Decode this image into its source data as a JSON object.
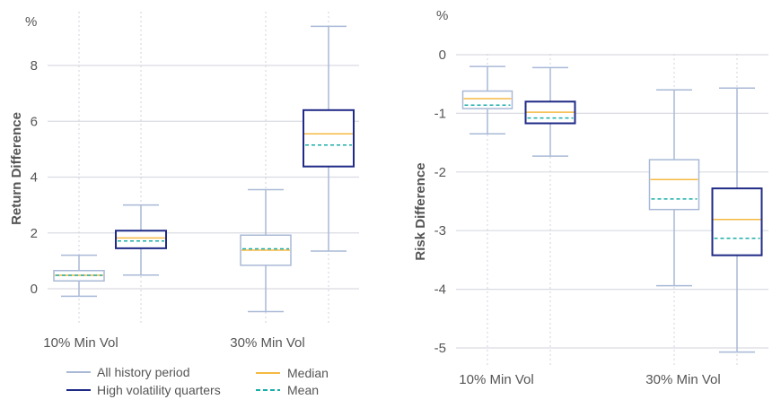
{
  "colors": {
    "all_history": "#a9b9d6",
    "high_vol": "#1f2a86",
    "median": "#f5b942",
    "mean": "#1aaea8",
    "grid": "#d9dbe2"
  },
  "legend": {
    "all_history": "All history period",
    "high_vol": "High volatility quarters",
    "median": "Median",
    "mean": "Mean"
  },
  "chart_data": [
    {
      "type": "box",
      "unit": "%",
      "ylabel": "Return Difference",
      "ylim": [
        -1.2,
        9.8
      ],
      "yticks": [
        "0",
        "2",
        "4",
        "6",
        "8"
      ],
      "categories": [
        "10% Min Vol",
        "30% Min Vol"
      ],
      "series": [
        {
          "name": "All history period",
          "boxes": [
            {
              "whisker_high": 1.2,
              "q3": 0.65,
              "median": 0.48,
              "mean": 0.48,
              "q1": 0.28,
              "whisker_low": -0.27
            },
            {
              "whisker_high": 3.55,
              "q3": 1.92,
              "median": 1.38,
              "mean": 1.43,
              "q1": 0.84,
              "whisker_low": -0.82
            }
          ]
        },
        {
          "name": "High volatility quarters",
          "boxes": [
            {
              "whisker_high": 3.0,
              "q3": 2.08,
              "median": 1.82,
              "mean": 1.71,
              "q1": 1.45,
              "whisker_low": 0.49
            },
            {
              "whisker_high": 9.4,
              "q3": 6.4,
              "median": 5.55,
              "mean": 5.15,
              "q1": 4.38,
              "whisker_low": 1.35
            }
          ]
        }
      ]
    },
    {
      "type": "box",
      "unit": "%",
      "ylabel": "Risk Difference",
      "ylim": [
        -5.25,
        0.2
      ],
      "yticks": [
        "0",
        "-1",
        "-2",
        "-3",
        "-4",
        "-5"
      ],
      "categories": [
        "10% Min Vol",
        "30% Min Vol"
      ],
      "series": [
        {
          "name": "All history period",
          "boxes": [
            {
              "whisker_high": -0.2,
              "q3": -0.62,
              "median": -0.75,
              "mean": -0.86,
              "q1": -0.92,
              "whisker_low": -1.35
            },
            {
              "whisker_high": -0.6,
              "q3": -1.79,
              "median": -2.13,
              "mean": -2.46,
              "q1": -2.64,
              "whisker_low": -3.94
            }
          ]
        },
        {
          "name": "High volatility quarters",
          "boxes": [
            {
              "whisker_high": -0.22,
              "q3": -0.8,
              "median": -0.98,
              "mean": -1.08,
              "q1": -1.17,
              "whisker_low": -1.73
            },
            {
              "whisker_high": -0.57,
              "q3": -2.28,
              "median": -2.81,
              "mean": -3.13,
              "q1": -3.42,
              "whisker_low": -5.07
            }
          ]
        }
      ]
    }
  ]
}
